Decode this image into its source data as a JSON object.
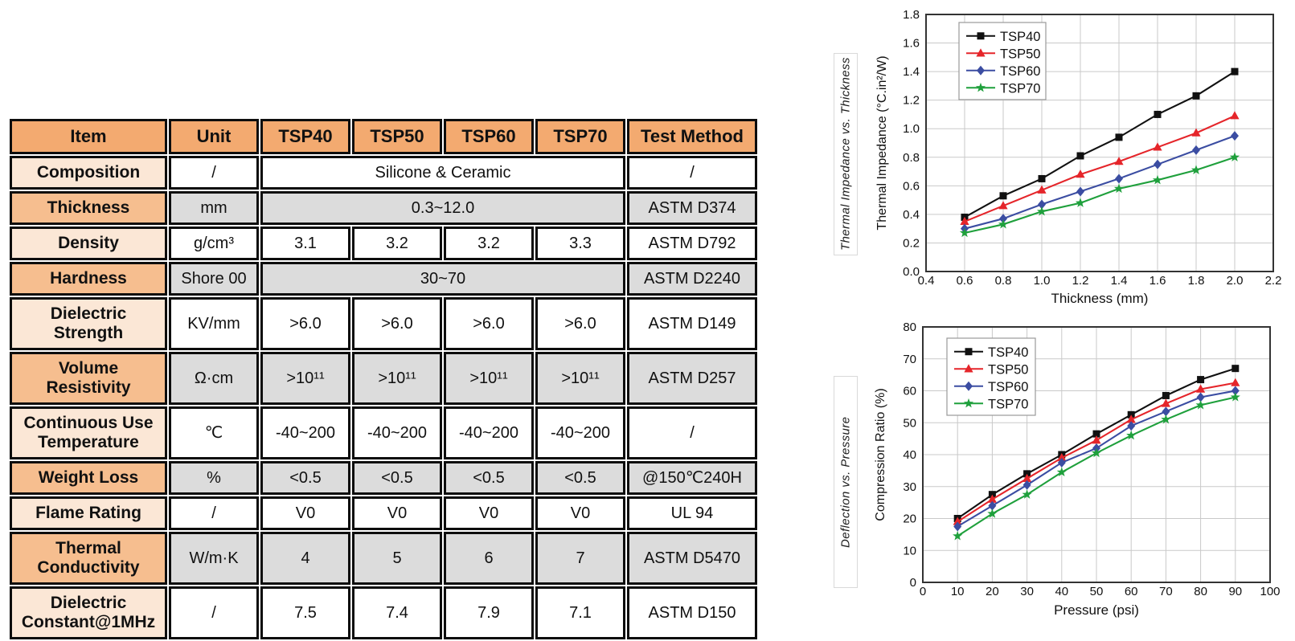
{
  "table": {
    "headers": [
      "Item",
      "Unit",
      "TSP40",
      "TSP50",
      "TSP60",
      "TSP70",
      "Test Method"
    ],
    "rows": [
      {
        "item": "Composition",
        "unit": "/",
        "merged": true,
        "values": [
          "Silicone & Ceramic"
        ],
        "method": "/",
        "shade": "white",
        "item_shade": "peach",
        "tall": false
      },
      {
        "item": "Thickness",
        "unit": "mm",
        "merged": true,
        "values": [
          "0.3~12.0"
        ],
        "method": "ASTM D374",
        "shade": "gray",
        "item_shade": "orange",
        "tall": false
      },
      {
        "item": "Density",
        "unit": "g/cm³",
        "merged": false,
        "values": [
          "3.1",
          "3.2",
          "3.2",
          "3.3"
        ],
        "method": "ASTM D792",
        "shade": "white",
        "item_shade": "peach",
        "tall": false
      },
      {
        "item": "Hardness",
        "unit": "Shore 00",
        "merged": true,
        "values": [
          "30~70"
        ],
        "method": "ASTM D2240",
        "shade": "gray",
        "item_shade": "orange",
        "tall": false
      },
      {
        "item": "Dielectric Strength",
        "unit": "KV/mm",
        "merged": false,
        "values": [
          ">6.0",
          ">6.0",
          ">6.0",
          ">6.0"
        ],
        "method": "ASTM D149",
        "shade": "white",
        "item_shade": "peach",
        "tall": true
      },
      {
        "item": "Volume Resistivity",
        "unit": "Ω·cm",
        "merged": false,
        "values": [
          ">10¹¹",
          ">10¹¹",
          ">10¹¹",
          ">10¹¹"
        ],
        "method": "ASTM D257",
        "shade": "gray",
        "item_shade": "orange",
        "tall": true
      },
      {
        "item": "Continuous Use Temperature",
        "unit": "℃",
        "merged": false,
        "values": [
          "-40~200",
          "-40~200",
          "-40~200",
          "-40~200"
        ],
        "method": "/",
        "shade": "white",
        "item_shade": "peach",
        "tall": true
      },
      {
        "item": "Weight Loss",
        "unit": "%",
        "merged": false,
        "values": [
          "<0.5",
          "<0.5",
          "<0.5",
          "<0.5"
        ],
        "method": "@150℃240H",
        "shade": "gray",
        "item_shade": "orange",
        "tall": false
      },
      {
        "item": "Flame Rating",
        "unit": "/",
        "merged": false,
        "values": [
          "V0",
          "V0",
          "V0",
          "V0"
        ],
        "method": "UL 94",
        "shade": "white",
        "item_shade": "peach",
        "tall": false
      },
      {
        "item": "Thermal Conductivity",
        "unit": "W/m·K",
        "merged": false,
        "values": [
          "4",
          "5",
          "6",
          "7"
        ],
        "method": "ASTM D5470",
        "shade": "gray",
        "item_shade": "orange",
        "tall": true
      },
      {
        "item": "Dielectric Constant@1MHz",
        "unit": "/",
        "merged": false,
        "values": [
          "7.5",
          "7.4",
          "7.9",
          "7.1"
        ],
        "method": "ASTM D150",
        "shade": "white",
        "item_shade": "peach",
        "tall": true
      }
    ],
    "colors": {
      "header_bg": "#F3AA70",
      "item_orange_bg": "#F6BE8F",
      "item_peach_bg": "#FBE7D6",
      "gray_cell_bg": "#DCDCDC",
      "white_cell_bg": "#ffffff",
      "border": "#0d0d0d"
    }
  },
  "chart_data": [
    {
      "type": "line",
      "title": "Thermal Impedance vs. Thickness",
      "side_label": "Thermal Impedance vs. Thickness",
      "xlabel": "Thickness (mm)",
      "ylabel": "Thermal Impedance (°C.in²/W)",
      "xlim": [
        0.4,
        2.2
      ],
      "ylim": [
        0,
        1.8
      ],
      "xticks": [
        0.4,
        0.6,
        0.8,
        1.0,
        1.2,
        1.4,
        1.6,
        1.8,
        2.0,
        2.2
      ],
      "xtick_labels": [
        "0.4",
        "0.6",
        "0.8",
        "1.0",
        "1.2",
        "1.4",
        "1.6",
        "1.8",
        "2.0",
        "2.2"
      ],
      "yticks": [
        0,
        0.2,
        0.4,
        0.6,
        0.8,
        1.0,
        1.2,
        1.4,
        1.6,
        1.8
      ],
      "ytick_labels": [
        "0.0",
        "0.2",
        "0.4",
        "0.6",
        "0.8",
        "1.0",
        "1.2",
        "1.4",
        "1.6",
        "1.8"
      ],
      "x": [
        0.6,
        0.8,
        1.0,
        1.2,
        1.4,
        1.6,
        1.8,
        2.0
      ],
      "series": [
        {
          "name": "TSP40",
          "color": "#111111",
          "marker": "square",
          "values": [
            0.38,
            0.53,
            0.65,
            0.81,
            0.94,
            1.1,
            1.23,
            1.4
          ]
        },
        {
          "name": "TSP50",
          "color": "#E5252A",
          "marker": "triangle",
          "values": [
            0.35,
            0.46,
            0.57,
            0.68,
            0.77,
            0.87,
            0.97,
            1.09
          ]
        },
        {
          "name": "TSP60",
          "color": "#3B4DA2",
          "marker": "diamond",
          "values": [
            0.3,
            0.37,
            0.47,
            0.56,
            0.65,
            0.75,
            0.85,
            0.95
          ]
        },
        {
          "name": "TSP70",
          "color": "#1FA03C",
          "marker": "star",
          "values": [
            0.27,
            0.33,
            0.42,
            0.48,
            0.58,
            0.64,
            0.71,
            0.8
          ]
        }
      ],
      "grid": true,
      "legend_position": "top-left"
    },
    {
      "type": "line",
      "title": "Deflection vs. Pressure",
      "side_label": "Deflection vs. Pressure",
      "xlabel": "Pressure (psi)",
      "ylabel": "Compression Ratio (%)",
      "xlim": [
        0,
        100
      ],
      "ylim": [
        0,
        80
      ],
      "xticks": [
        0,
        10,
        20,
        30,
        40,
        50,
        60,
        70,
        80,
        90,
        100
      ],
      "xtick_labels": [
        "0",
        "10",
        "20",
        "30",
        "40",
        "50",
        "60",
        "70",
        "80",
        "90",
        "100"
      ],
      "yticks": [
        0,
        10,
        20,
        30,
        40,
        50,
        60,
        70,
        80
      ],
      "ytick_labels": [
        "0",
        "10",
        "20",
        "30",
        "40",
        "50",
        "60",
        "70",
        "80"
      ],
      "x": [
        10,
        20,
        30,
        40,
        50,
        60,
        70,
        80,
        90
      ],
      "series": [
        {
          "name": "TSP40",
          "color": "#111111",
          "marker": "square",
          "values": [
            20,
            27.5,
            34,
            40,
            46.5,
            52.5,
            58.5,
            63.5,
            67
          ]
        },
        {
          "name": "TSP50",
          "color": "#E5252A",
          "marker": "triangle",
          "values": [
            19,
            26,
            32.5,
            39,
            44.5,
            51,
            56,
            60.5,
            62.5
          ]
        },
        {
          "name": "TSP60",
          "color": "#3B4DA2",
          "marker": "diamond",
          "values": [
            17.5,
            24,
            30.5,
            37.5,
            42,
            49,
            53.5,
            58,
            60
          ]
        },
        {
          "name": "TSP70",
          "color": "#1FA03C",
          "marker": "star",
          "values": [
            14.5,
            21.5,
            27.5,
            34.5,
            40.5,
            46,
            51,
            55.5,
            58
          ]
        }
      ],
      "grid": true,
      "legend_position": "top-left"
    }
  ]
}
